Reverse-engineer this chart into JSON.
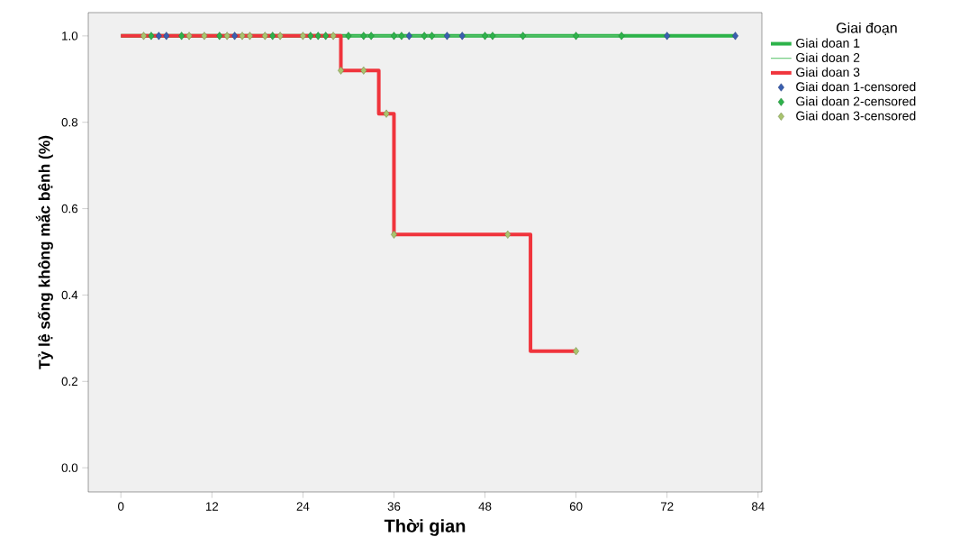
{
  "chart_data": {
    "type": "step",
    "xlabel": "Thời gian",
    "ylabel": "Tỷ lệ sống không mắc bệnh (%)",
    "legend_title": "Giai đoạn",
    "legend": "right",
    "marker": "none",
    "grid": false,
    "xlim": [
      -4.3,
      84.5
    ],
    "ylim": [
      -0.056,
      1.054
    ],
    "xticks": [
      0,
      12,
      24,
      36,
      48,
      60,
      72,
      84
    ],
    "yticks": [
      {
        "value": 0,
        "label": "0.0"
      },
      {
        "value": 0.2,
        "label": "0.2"
      },
      {
        "value": 0.4,
        "label": "0.4"
      },
      {
        "value": 0.6,
        "label": "0.6"
      },
      {
        "value": 0.8,
        "label": "0.8"
      },
      {
        "value": 1,
        "label": "1.0"
      }
    ],
    "series": [
      {
        "name": "Giai doan 1",
        "color": "#2db34a",
        "x": [
          0,
          81
        ],
        "values": [
          1,
          1
        ]
      },
      {
        "name": "Giai doan 2",
        "color": "#5cc46e",
        "x": [
          0,
          66
        ],
        "values": [
          1,
          1
        ]
      },
      {
        "name": "Giai doan 3",
        "color": "#f0343c",
        "x": [
          0,
          29,
          34,
          36,
          54,
          60
        ],
        "values": [
          1,
          0.92,
          0.82,
          0.54,
          0.27,
          0.27
        ]
      },
      {
        "name": "Giai doan 1-censored",
        "type": "scatter",
        "marker": "diamond",
        "color": "#3a5fb0",
        "x": [
          5,
          6,
          15,
          38,
          43,
          45,
          72,
          81
        ],
        "values": [
          1,
          1,
          1,
          1,
          1,
          1,
          1,
          1
        ]
      },
      {
        "name": "Giai doan 2-censored",
        "type": "scatter",
        "marker": "diamond",
        "color": "#2db34a",
        "x": [
          4,
          8,
          13,
          20,
          25,
          26,
          27,
          30,
          32,
          33,
          36,
          37,
          40,
          41,
          48,
          49,
          53,
          60,
          66
        ],
        "values": [
          1,
          1,
          1,
          1,
          1,
          1,
          1,
          1,
          1,
          1,
          1,
          1,
          1,
          1,
          1,
          1,
          1,
          1,
          1
        ]
      },
      {
        "name": "Giai doan 3-censored",
        "type": "scatter",
        "marker": "diamond",
        "color": "#a9c46e",
        "x": [
          3,
          9,
          11,
          14,
          16,
          17,
          19,
          21,
          24,
          28,
          29,
          32,
          35,
          36,
          51,
          60
        ],
        "values": [
          1,
          1,
          1,
          1,
          1,
          1,
          1,
          1,
          1,
          1,
          0.92,
          0.92,
          0.82,
          0.54,
          0.54,
          0.27
        ]
      }
    ]
  }
}
